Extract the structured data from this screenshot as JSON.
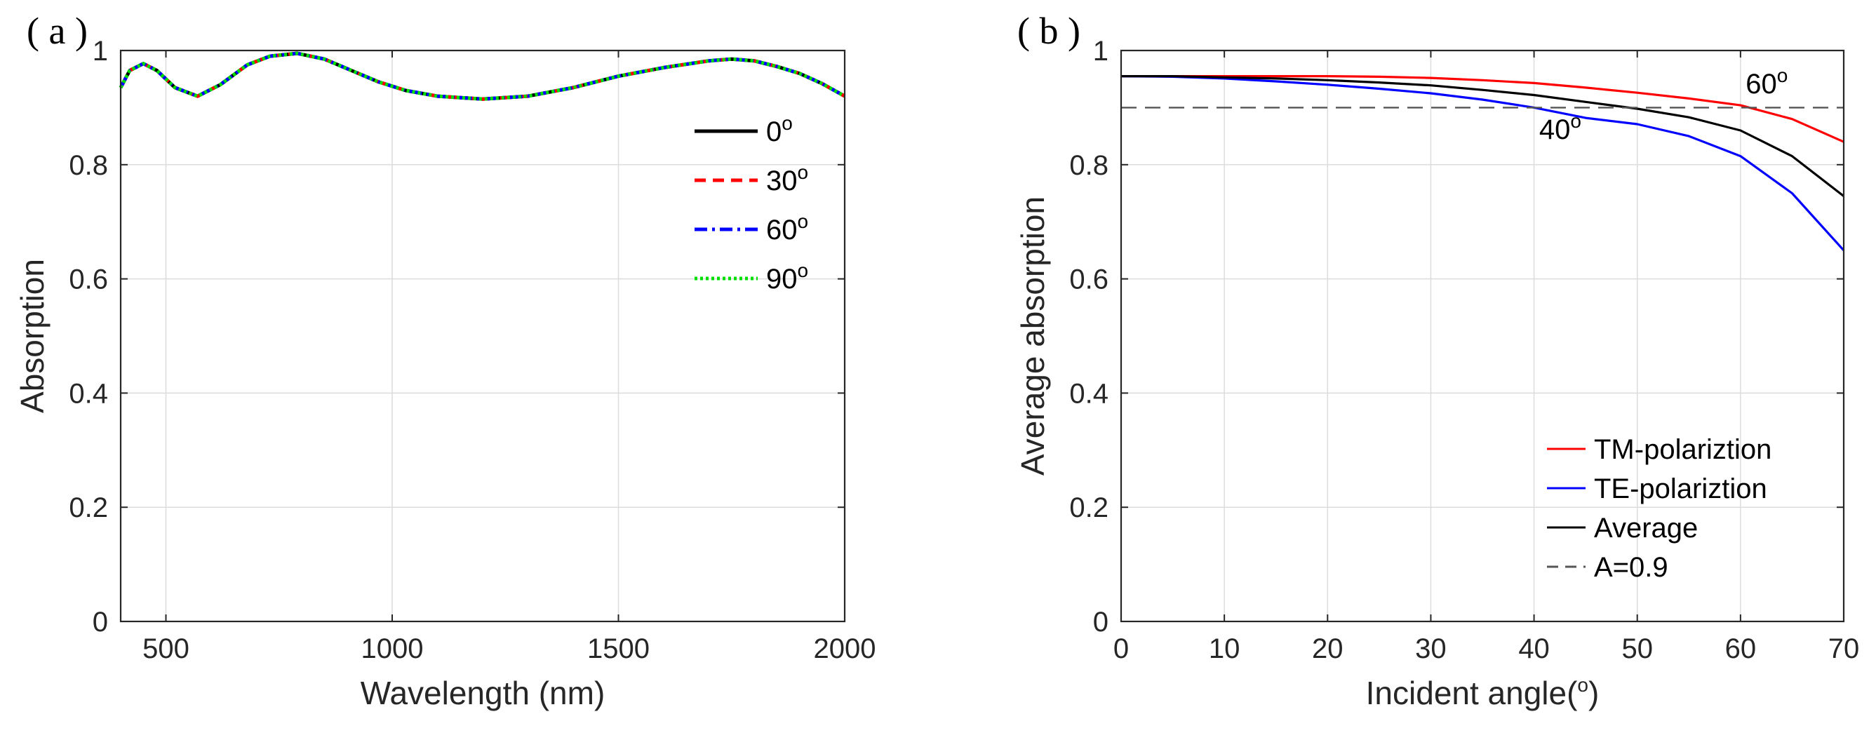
{
  "chart_data": [
    {
      "panel_label": "( a )",
      "type": "line",
      "xlabel": "Wavelength (nm)",
      "ylabel": "Absorption",
      "xlim": [
        400,
        2000
      ],
      "ylim": [
        0,
        1
      ],
      "xticks": [
        500,
        1000,
        1500,
        2000
      ],
      "yticks": [
        0,
        0.2,
        0.4,
        0.6,
        0.8,
        1
      ],
      "ytick_labels": [
        "0",
        "0.2",
        "0.4",
        "0.6",
        "0.8",
        "1"
      ],
      "grid": true,
      "legend_position": "top-right",
      "x": [
        400,
        420,
        450,
        480,
        520,
        570,
        620,
        680,
        730,
        790,
        850,
        910,
        970,
        1030,
        1100,
        1200,
        1300,
        1400,
        1500,
        1600,
        1700,
        1750,
        1800,
        1850,
        1900,
        1950,
        2000
      ],
      "series": [
        {
          "name": "0",
          "sup": "o",
          "color": "#000000",
          "dash": "solid",
          "values": [
            0.935,
            0.965,
            0.977,
            0.965,
            0.935,
            0.92,
            0.94,
            0.975,
            0.99,
            0.995,
            0.985,
            0.965,
            0.945,
            0.93,
            0.92,
            0.915,
            0.92,
            0.935,
            0.955,
            0.97,
            0.982,
            0.985,
            0.982,
            0.972,
            0.96,
            0.942,
            0.92
          ]
        },
        {
          "name": "30",
          "sup": "o",
          "color": "#ff0000",
          "dash": "dashed",
          "values": [
            0.935,
            0.965,
            0.977,
            0.965,
            0.935,
            0.92,
            0.94,
            0.975,
            0.99,
            0.995,
            0.985,
            0.965,
            0.945,
            0.93,
            0.92,
            0.915,
            0.92,
            0.935,
            0.955,
            0.97,
            0.982,
            0.985,
            0.982,
            0.972,
            0.96,
            0.942,
            0.92
          ]
        },
        {
          "name": "60",
          "sup": "o",
          "color": "#0000ff",
          "dash": "dashdot",
          "values": [
            0.935,
            0.965,
            0.977,
            0.965,
            0.935,
            0.92,
            0.94,
            0.975,
            0.99,
            0.995,
            0.985,
            0.965,
            0.945,
            0.93,
            0.92,
            0.915,
            0.92,
            0.935,
            0.955,
            0.97,
            0.982,
            0.985,
            0.982,
            0.972,
            0.96,
            0.942,
            0.92
          ]
        },
        {
          "name": "90",
          "sup": "o",
          "color": "#00e000",
          "dash": "dotted",
          "values": [
            0.935,
            0.965,
            0.977,
            0.965,
            0.935,
            0.92,
            0.94,
            0.975,
            0.99,
            0.995,
            0.985,
            0.965,
            0.945,
            0.93,
            0.92,
            0.915,
            0.92,
            0.935,
            0.955,
            0.97,
            0.982,
            0.985,
            0.982,
            0.972,
            0.96,
            0.942,
            0.92
          ]
        }
      ]
    },
    {
      "panel_label": "( b )",
      "type": "line",
      "xlabel": "Incident angle(",
      "xlabel_sup": "o",
      "xlabel_end": ")",
      "ylabel": "Average absorption",
      "xlim": [
        0,
        70
      ],
      "ylim": [
        0,
        1
      ],
      "xticks": [
        0,
        10,
        20,
        30,
        40,
        50,
        60,
        70
      ],
      "yticks": [
        0,
        0.2,
        0.4,
        0.6,
        0.8,
        1
      ],
      "ytick_labels": [
        "0",
        "0.2",
        "0.4",
        "0.6",
        "0.8",
        "1"
      ],
      "grid": true,
      "legend_position": "bottom-right",
      "x": [
        0,
        5,
        10,
        15,
        20,
        25,
        30,
        35,
        40,
        45,
        50,
        55,
        60,
        65,
        70
      ],
      "series": [
        {
          "name": "TM-polariztion",
          "color": "#ff0000",
          "dash": "solid",
          "values": [
            0.955,
            0.955,
            0.955,
            0.955,
            0.955,
            0.954,
            0.952,
            0.948,
            0.943,
            0.935,
            0.926,
            0.916,
            0.904,
            0.88,
            0.84
          ]
        },
        {
          "name": "TE-polariztion",
          "color": "#0000ff",
          "dash": "solid",
          "values": [
            0.955,
            0.954,
            0.951,
            0.946,
            0.94,
            0.933,
            0.925,
            0.914,
            0.9,
            0.882,
            0.871,
            0.85,
            0.815,
            0.75,
            0.65
          ]
        },
        {
          "name": "Average",
          "color": "#000000",
          "dash": "solid",
          "values": [
            0.955,
            0.955,
            0.953,
            0.951,
            0.948,
            0.944,
            0.939,
            0.931,
            0.922,
            0.91,
            0.898,
            0.883,
            0.86,
            0.815,
            0.745
          ]
        },
        {
          "name": "A=0.9",
          "color": "#555555",
          "dash": "dashed",
          "values": [
            0.9,
            0.9,
            0.9,
            0.9,
            0.9,
            0.9,
            0.9,
            0.9,
            0.9,
            0.9,
            0.9,
            0.9,
            0.9,
            0.9,
            0.9
          ]
        }
      ],
      "annotations": [
        {
          "text": "60",
          "sup": "o",
          "x": 60.5,
          "y": 0.925
        },
        {
          "text": "40",
          "sup": "o",
          "x": 40.5,
          "y": 0.845
        }
      ]
    }
  ]
}
